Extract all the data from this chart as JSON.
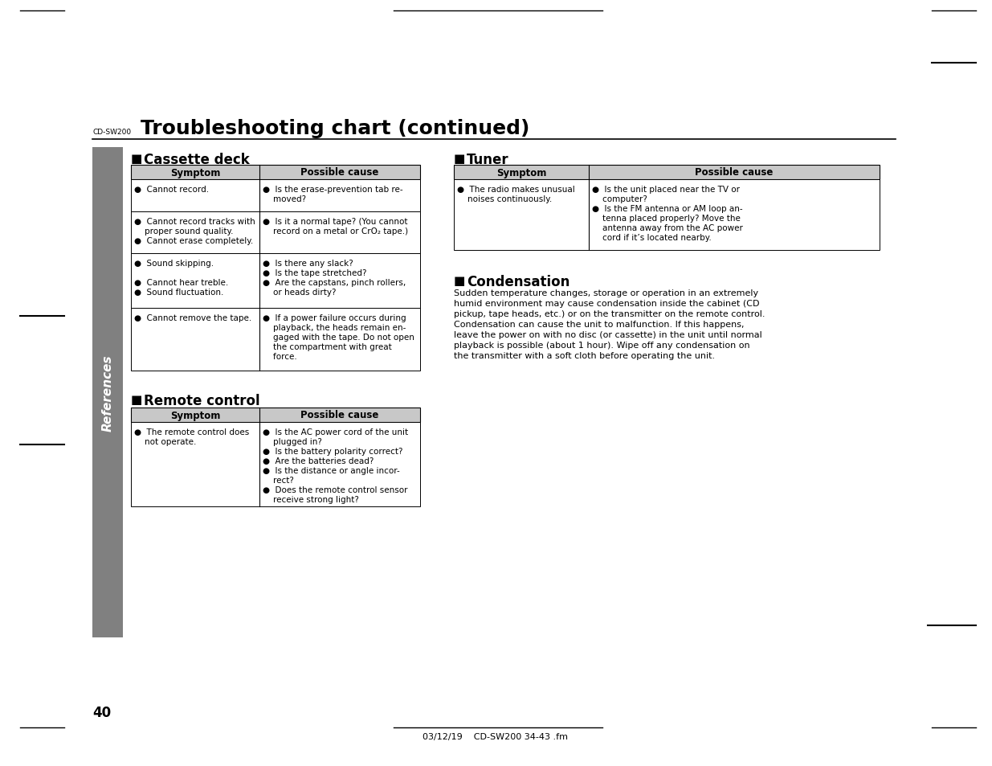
{
  "page_label": "CD-SW200",
  "title": "Troubleshooting chart (continued)",
  "page_number": "40",
  "footer": "03/12/19    CD-SW200 34-43 .fm",
  "section_cassette": "Cassette deck",
  "section_tuner": "Tuner",
  "section_remote": "Remote control",
  "section_condensation": "Condensation",
  "col_header_symptom": "Symptom",
  "col_header_cause": "Possible cause",
  "cassette_rows": [
    {
      "symptom": [
        "●  Cannot record."
      ],
      "cause": [
        "●  Is the erase-prevention tab re-\n    moved?"
      ]
    },
    {
      "symptom": [
        "●  Cannot record tracks with\n    proper sound quality.",
        "●  Cannot erase completely."
      ],
      "cause": [
        "●  Is it a normal tape? (You cannot\n    record on a metal or CrO₂ tape.)"
      ]
    },
    {
      "symptom": [
        "●  Sound skipping.",
        "",
        "●  Cannot hear treble.",
        "●  Sound fluctuation."
      ],
      "cause": [
        "●  Is there any slack?",
        "●  Is the tape stretched?",
        "●  Are the capstans, pinch rollers,\n    or heads dirty?"
      ]
    },
    {
      "symptom": [
        "●  Cannot remove the tape."
      ],
      "cause": [
        "●  If a power failure occurs during\n    playback, the heads remain en-\n    gaged with the tape. Do not open\n    the compartment with great\n    force."
      ]
    }
  ],
  "tuner_rows": [
    {
      "symptom": [
        "●  The radio makes unusual\n    noises continuously."
      ],
      "cause": [
        "●  Is the unit placed near the TV or\n    computer?",
        "●  Is the FM antenna or AM loop an-\n    tenna placed properly? Move the\n    antenna away from the AC power\n    cord if it’s located nearby."
      ]
    }
  ],
  "remote_rows": [
    {
      "symptom": [
        "●  The remote control does\n    not operate."
      ],
      "cause": [
        "●  Is the AC power cord of the unit\n    plugged in?",
        "●  Is the battery polarity correct?",
        "●  Are the batteries dead?",
        "●  Is the distance or angle incor-\n    rect?",
        "●  Does the remote control sensor\n    receive strong light?"
      ]
    }
  ],
  "condensation_text": "Sudden temperature changes, storage or operation in an extremely\nhumid environment may cause condensation inside the cabinet (CD\npickup, tape heads, etc.) or on the transmitter on the remote control.\nCondensation can cause the unit to malfunction. If this happens,\nleave the power on with no disc (or cassette) in the unit until normal\nplayback is possible (about 1 hour). Wipe off any condensation on\nthe transmitter with a soft cloth before operating the unit.",
  "sidebar_color": "#808080",
  "sidebar_text": "References",
  "header_bg": "#d0d0d0",
  "bg_color": "#ffffff",
  "border_color": "#000000"
}
